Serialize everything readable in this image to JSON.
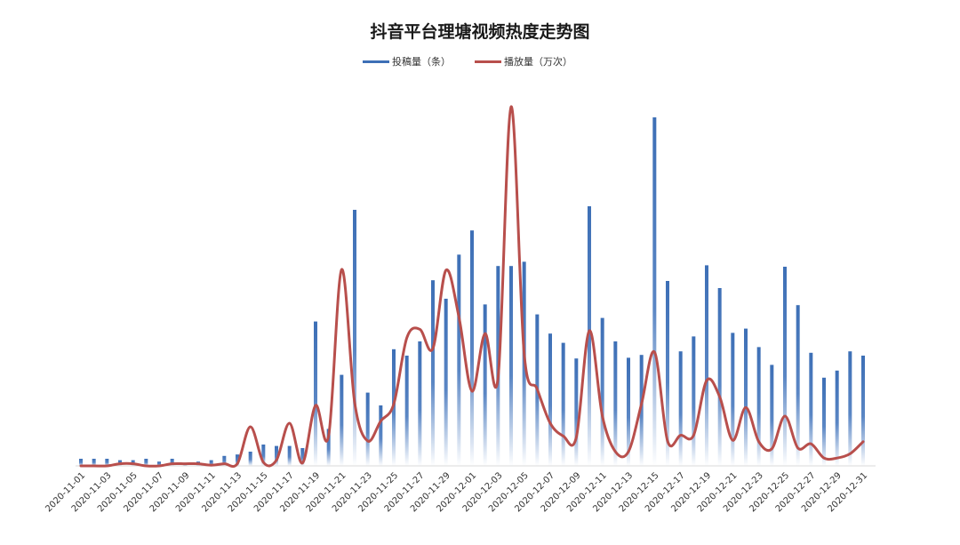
{
  "chart_data": {
    "type": "bar+line",
    "title": "抖音平台理塘视频热度走势图",
    "legend": [
      {
        "name": "投稿量（条）",
        "type": "bar",
        "color": "#3d6fb6"
      },
      {
        "name": "播放量（万次）",
        "type": "line",
        "color": "#b84f4c"
      }
    ],
    "colors": {
      "bar": "#3d6fb6",
      "bar_fade": "#ffffff",
      "line": "#b84f4c"
    },
    "dates": [
      "2020-11-01",
      "2020-11-02",
      "2020-11-03",
      "2020-11-04",
      "2020-11-05",
      "2020-11-06",
      "2020-11-07",
      "2020-11-08",
      "2020-11-09",
      "2020-11-10",
      "2020-11-11",
      "2020-11-12",
      "2020-11-13",
      "2020-11-14",
      "2020-11-15",
      "2020-11-16",
      "2020-11-17",
      "2020-11-18",
      "2020-11-19",
      "2020-11-20",
      "2020-11-21",
      "2020-11-22",
      "2020-11-23",
      "2020-11-24",
      "2020-11-25",
      "2020-11-26",
      "2020-11-27",
      "2020-11-28",
      "2020-11-29",
      "2020-11-30",
      "2020-12-01",
      "2020-12-02",
      "2020-12-03",
      "2020-12-04",
      "2020-12-05",
      "2020-12-06",
      "2020-12-07",
      "2020-12-08",
      "2020-12-09",
      "2020-12-10",
      "2020-12-11",
      "2020-12-12",
      "2020-12-13",
      "2020-12-14",
      "2020-12-15",
      "2020-12-16",
      "2020-12-17",
      "2020-12-18",
      "2020-12-19",
      "2020-12-20",
      "2020-12-21",
      "2020-12-22",
      "2020-12-23",
      "2020-12-24",
      "2020-12-25",
      "2020-12-26",
      "2020-12-27",
      "2020-12-28",
      "2020-12-29",
      "2020-12-30",
      "2020-12-31"
    ],
    "tick_labels": [
      "2020-11-01",
      "2020-11-03",
      "2020-11-05",
      "2020-11-07",
      "2020-11-09",
      "2020-11-11",
      "2020-11-13",
      "2020-11-15",
      "2020-11-17",
      "2020-11-19",
      "2020-11-21",
      "2020-11-23",
      "2020-11-25",
      "2020-11-27",
      "2020-11-29",
      "2020-12-01",
      "2020-12-03",
      "2020-12-05",
      "2020-12-07",
      "2020-12-09",
      "2020-12-11",
      "2020-12-13",
      "2020-12-15",
      "2020-12-17",
      "2020-12-19",
      "2020-12-21",
      "2020-12-23",
      "2020-12-25",
      "2020-12-27",
      "2020-12-29",
      "2020-12-31"
    ],
    "bar_values": [
      2,
      2,
      2,
      1.6,
      1.6,
      2,
      1.2,
      2,
      0.8,
      1.2,
      1.6,
      2.8,
      3.2,
      4,
      6,
      5.6,
      5.6,
      5,
      40.6,
      10.4,
      25.6,
      72,
      20.6,
      17,
      32.8,
      31,
      35,
      52.2,
      47,
      59.4,
      66.2,
      45.4,
      56.2,
      56.2,
      57.4,
      42.6,
      37.2,
      34.6,
      30.2,
      73,
      41.6,
      35,
      30.4,
      31.2,
      98,
      52,
      32.2,
      36.4,
      56.4,
      50,
      37.4,
      38.6,
      33.4,
      28.4,
      56,
      45.2,
      31.8,
      24.8,
      26.8,
      32.2,
      31
    ],
    "line_values": [
      0,
      0,
      0,
      0.6,
      0.6,
      0,
      0,
      0.6,
      0.6,
      0.6,
      0.2,
      0.6,
      0.6,
      11,
      1,
      1.6,
      12,
      0.8,
      17,
      8.4,
      55.2,
      17.8,
      7,
      12.6,
      17.4,
      36,
      38.4,
      33,
      55,
      41.8,
      21,
      37.2,
      24.8,
      101,
      31.6,
      21.6,
      12,
      8.4,
      8,
      38,
      14,
      4,
      4,
      17.4,
      32,
      7,
      8.6,
      8.6,
      24,
      19.4,
      7.2,
      16.4,
      6.8,
      4.8,
      14,
      5,
      6.2,
      2.2,
      2.2,
      3.4,
      6.8
    ],
    "y_range": [
      0,
      100
    ],
    "grid": false,
    "legend_position": "top-center",
    "xlabel": "",
    "ylabel": ""
  }
}
